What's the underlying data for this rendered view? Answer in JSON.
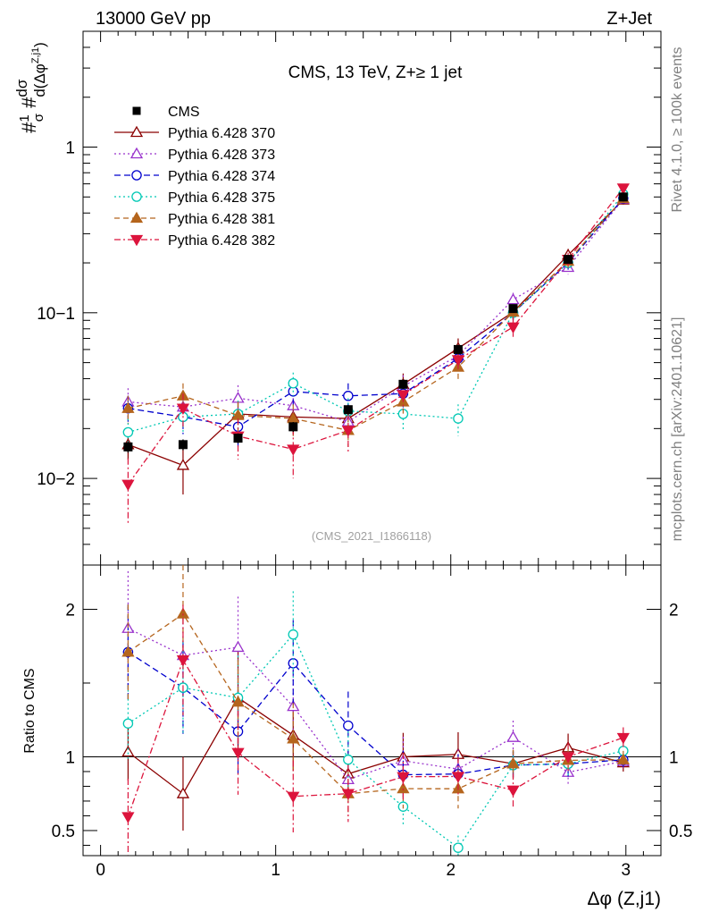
{
  "header": {
    "left_label": "13000 GeV pp",
    "right_label": "Z+Jet"
  },
  "side_labels": {
    "rivet": "Rivet 4.1.0, ≥ 100k events",
    "mcplots": "mcplots.cern.ch [arXiv:2401.10621]"
  },
  "chart_data": {
    "type": "line",
    "title": "CMS, 13 TeV, Z+≥ 1 jet",
    "analysis_tag": "(CMS_2021_I1866118)",
    "xlabel": "Δφ (Z,j1)",
    "ylabel": "#1/σ #dσ/d(Δφ^{Z,j1})",
    "ratio_ylabel": "Ratio to CMS",
    "xlim": [
      -0.1,
      3.2
    ],
    "ylim": [
      0.003,
      5.0
    ],
    "ylog": true,
    "ratio_ylim": [
      0.33,
      2.3
    ],
    "x_ticks": [
      0,
      1,
      2,
      3
    ],
    "x_tick_labels": [
      "0",
      "1",
      "2",
      "3"
    ],
    "y_ticks": [
      0.01,
      0.1,
      1
    ],
    "y_tick_labels": [
      "10−2",
      "10−1",
      "1"
    ],
    "ratio_ticks": [
      0.5,
      1,
      2
    ],
    "ratio_tick_labels": [
      "0.5",
      "1",
      "2"
    ],
    "x": [
      0.157,
      0.471,
      0.785,
      1.1,
      1.414,
      1.728,
      2.042,
      2.356,
      2.67,
      2.985
    ],
    "data": {
      "name": "CMS",
      "values": [
        0.0155,
        0.016,
        0.0175,
        0.0205,
        0.026,
        0.037,
        0.06,
        0.106,
        0.21,
        0.5
      ],
      "errors": [
        0.0012,
        0.0012,
        0.0012,
        0.0014,
        0.0018,
        0.0025,
        0.004,
        0.006,
        0.012,
        0.03
      ]
    },
    "series": [
      {
        "name": "Pythia 6.428 370",
        "color": "#8b0000",
        "marker": "triangle-open",
        "dash": "",
        "values": [
          0.016,
          0.012,
          0.0245,
          0.0235,
          0.023,
          0.037,
          0.061,
          0.101,
          0.223,
          0.48
        ],
        "errors": [
          0.003,
          0.004,
          0.006,
          0.005,
          0.004,
          0.006,
          0.009,
          0.01,
          0.02,
          0.03
        ]
      },
      {
        "name": "Pythia 6.428 373",
        "color": "#9932cc",
        "marker": "triangle-open",
        "dash": "2,3",
        "values": [
          0.029,
          0.027,
          0.0305,
          0.0275,
          0.022,
          0.036,
          0.055,
          0.12,
          0.188,
          0.485
        ],
        "errors": [
          0.006,
          0.005,
          0.006,
          0.005,
          0.004,
          0.006,
          0.008,
          0.012,
          0.018,
          0.03
        ]
      },
      {
        "name": "Pythia 6.428 374",
        "color": "#0000cd",
        "marker": "circle-open",
        "dash": "7,4",
        "values": [
          0.0265,
          0.0235,
          0.0205,
          0.0335,
          0.0315,
          0.0325,
          0.053,
          0.1,
          0.2,
          0.49
        ],
        "errors": [
          0.005,
          0.005,
          0.005,
          0.006,
          0.006,
          0.006,
          0.008,
          0.01,
          0.018,
          0.03
        ]
      },
      {
        "name": "Pythia 6.428 375",
        "color": "#00c8b4",
        "marker": "circle-open",
        "dash": "2,3",
        "values": [
          0.019,
          0.0235,
          0.0245,
          0.0375,
          0.0255,
          0.0245,
          0.023,
          0.1,
          0.2,
          0.52
        ],
        "errors": [
          0.004,
          0.005,
          0.005,
          0.006,
          0.005,
          0.005,
          0.005,
          0.01,
          0.018,
          0.03
        ]
      },
      {
        "name": "Pythia 6.428 381",
        "color": "#b5651d",
        "marker": "triangle-up-filled",
        "dash": "6,4",
        "values": [
          0.0265,
          0.0315,
          0.024,
          0.023,
          0.0195,
          0.029,
          0.047,
          0.101,
          0.205,
          0.49
        ],
        "errors": [
          0.005,
          0.006,
          0.005,
          0.005,
          0.004,
          0.005,
          0.008,
          0.01,
          0.018,
          0.03
        ]
      },
      {
        "name": "Pythia 6.428 382",
        "color": "#dc143c",
        "marker": "triangle-down-filled",
        "dash": "7,3,2,3",
        "values": [
          0.0092,
          0.0265,
          0.018,
          0.015,
          0.0195,
          0.032,
          0.052,
          0.082,
          0.21,
          0.565
        ],
        "errors": [
          0.004,
          0.006,
          0.005,
          0.005,
          0.005,
          0.006,
          0.008,
          0.012,
          0.02,
          0.035
        ]
      }
    ]
  }
}
